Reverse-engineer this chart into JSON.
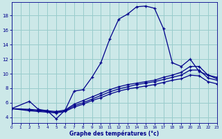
{
  "xlabel": "Graphe des températures (°c)",
  "bg_color": "#cce8e8",
  "grid_color": "#99cccc",
  "line_color": "#00008b",
  "x_ticks": [
    0,
    1,
    2,
    3,
    4,
    5,
    6,
    7,
    8,
    9,
    10,
    11,
    12,
    13,
    14,
    15,
    16,
    17,
    18,
    19,
    20,
    21,
    22,
    23
  ],
  "y_ticks": [
    4,
    6,
    8,
    10,
    12,
    14,
    16,
    18
  ],
  "xlim": [
    0,
    23
  ],
  "ylim": [
    3.2,
    19.8
  ],
  "line1_x": [
    0,
    2,
    3,
    4,
    5,
    6,
    7,
    8,
    9,
    10,
    11,
    12,
    13,
    14,
    15,
    16,
    17,
    18,
    19,
    20,
    21,
    22,
    23
  ],
  "line1_y": [
    5.2,
    6.2,
    5.1,
    4.9,
    3.8,
    5.0,
    7.6,
    7.8,
    9.5,
    11.5,
    14.8,
    17.5,
    18.2,
    19.2,
    19.3,
    19.0,
    16.2,
    11.5,
    11.0,
    12.0,
    10.3,
    9.8,
    9.3
  ],
  "line2_x": [
    0,
    2,
    3,
    4,
    5,
    6,
    7,
    8,
    9,
    10,
    11,
    12,
    13,
    14,
    15,
    16,
    17,
    18,
    19,
    20,
    21,
    22,
    23
  ],
  "line2_y": [
    5.2,
    5.1,
    5.0,
    4.9,
    4.8,
    5.0,
    5.8,
    6.3,
    6.8,
    7.3,
    7.8,
    8.2,
    8.5,
    8.7,
    8.9,
    9.1,
    9.5,
    9.8,
    10.2,
    11.0,
    11.0,
    9.8,
    9.5
  ],
  "line3_x": [
    0,
    2,
    3,
    4,
    5,
    6,
    7,
    8,
    9,
    10,
    11,
    12,
    13,
    14,
    15,
    16,
    17,
    18,
    19,
    20,
    21,
    22,
    23
  ],
  "line3_y": [
    5.2,
    5.0,
    4.9,
    4.8,
    4.7,
    4.9,
    5.6,
    6.0,
    6.5,
    7.0,
    7.5,
    7.9,
    8.2,
    8.5,
    8.7,
    8.9,
    9.2,
    9.5,
    9.8,
    10.5,
    10.5,
    9.4,
    9.1
  ],
  "line4_x": [
    0,
    2,
    3,
    4,
    5,
    6,
    7,
    8,
    9,
    10,
    11,
    12,
    13,
    14,
    15,
    16,
    17,
    18,
    19,
    20,
    21,
    22,
    23
  ],
  "line4_y": [
    5.2,
    4.9,
    4.8,
    4.7,
    4.6,
    4.8,
    5.4,
    5.8,
    6.3,
    6.7,
    7.2,
    7.6,
    7.9,
    8.1,
    8.3,
    8.5,
    8.8,
    9.1,
    9.3,
    9.8,
    9.7,
    8.9,
    8.6
  ]
}
